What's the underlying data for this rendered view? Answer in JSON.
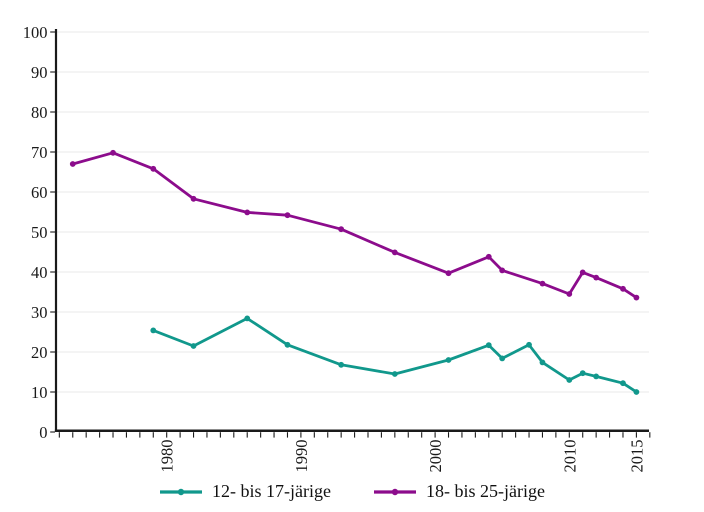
{
  "figure": {
    "background": "#ffffff"
  },
  "colors": {
    "axis": "#1a1a1a",
    "grid": "#e8e8e8",
    "teal": "#11988c",
    "purple": "#8c0c8c",
    "text": "#1a1a1a"
  },
  "chart_data": {
    "type": "line",
    "title": "",
    "xlabel": "",
    "ylabel": "",
    "xlim": [
      1971.7,
      2016.6
    ],
    "ylim": [
      0,
      100
    ],
    "grid": "horizontal",
    "legend_position": "bottom-center",
    "y_ticks": [
      0,
      10,
      20,
      30,
      40,
      50,
      60,
      70,
      80,
      90,
      100
    ],
    "x_tick_labels": [
      "1980",
      "1990",
      "2000",
      "2010",
      "2015"
    ],
    "x_minor_ticks": {
      "start_year": 1972,
      "end_year": 2016,
      "step": 1
    },
    "series": [
      {
        "name": "12- bis 17-järige",
        "color": "#11988c",
        "marker": "dot",
        "points": [
          [
            1979,
            25.4
          ],
          [
            1982,
            21.5
          ],
          [
            1986,
            28.4
          ],
          [
            1989,
            21.8
          ],
          [
            1993,
            16.8
          ],
          [
            1997,
            14.5
          ],
          [
            2001,
            18.0
          ],
          [
            2004,
            21.7
          ],
          [
            2005,
            18.4
          ],
          [
            2007,
            21.8
          ],
          [
            2008,
            17.4
          ],
          [
            2010,
            13.0
          ],
          [
            2011,
            14.7
          ],
          [
            2012,
            13.9
          ],
          [
            2014,
            12.2
          ],
          [
            2015,
            10.0
          ]
        ]
      },
      {
        "name": "18- bis 25-järige",
        "color": "#8c0c8c",
        "marker": "dot",
        "points": [
          [
            1973,
            67.0
          ],
          [
            1976,
            69.8
          ],
          [
            1979,
            65.8
          ],
          [
            1982,
            58.3
          ],
          [
            1986,
            54.9
          ],
          [
            1989,
            54.2
          ],
          [
            1993,
            50.7
          ],
          [
            1997,
            44.9
          ],
          [
            2001,
            39.7
          ],
          [
            2004,
            43.8
          ],
          [
            2005,
            40.4
          ],
          [
            2008,
            37.1
          ],
          [
            2010,
            34.5
          ],
          [
            2011,
            39.9
          ],
          [
            2012,
            38.6
          ],
          [
            2014,
            35.8
          ],
          [
            2015,
            33.6
          ]
        ]
      }
    ]
  }
}
